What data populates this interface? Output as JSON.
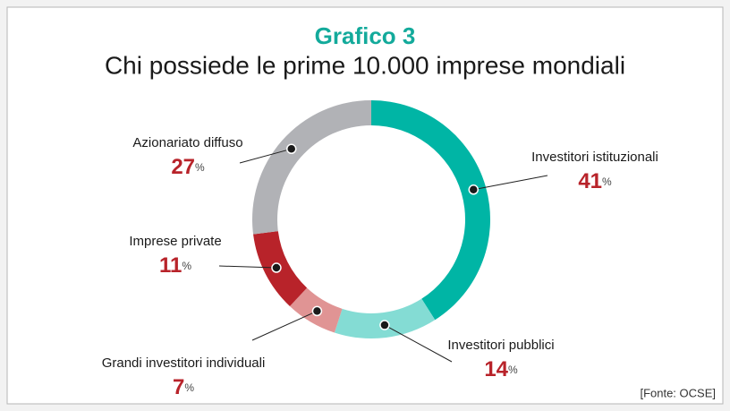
{
  "chart_data": {
    "type": "donut",
    "title": "Grafico 3",
    "subtitle": "Chi possiede le prime 10.000 imprese mondiali",
    "categories": [
      "Investitori istituzionali",
      "Investitori pubblici",
      "Grandi investitori individuali",
      "Imprese private",
      "Azionariato diffuso"
    ],
    "values": [
      41,
      14,
      7,
      11,
      27
    ],
    "value_labels": [
      "41%",
      "14%",
      "7%",
      "11%",
      "27%"
    ],
    "colors": [
      "#00b5a5",
      "#84dcd4",
      "#e09494",
      "#b8232a",
      "#b1b2b6"
    ],
    "source": "[Fonte: OCSE]"
  }
}
